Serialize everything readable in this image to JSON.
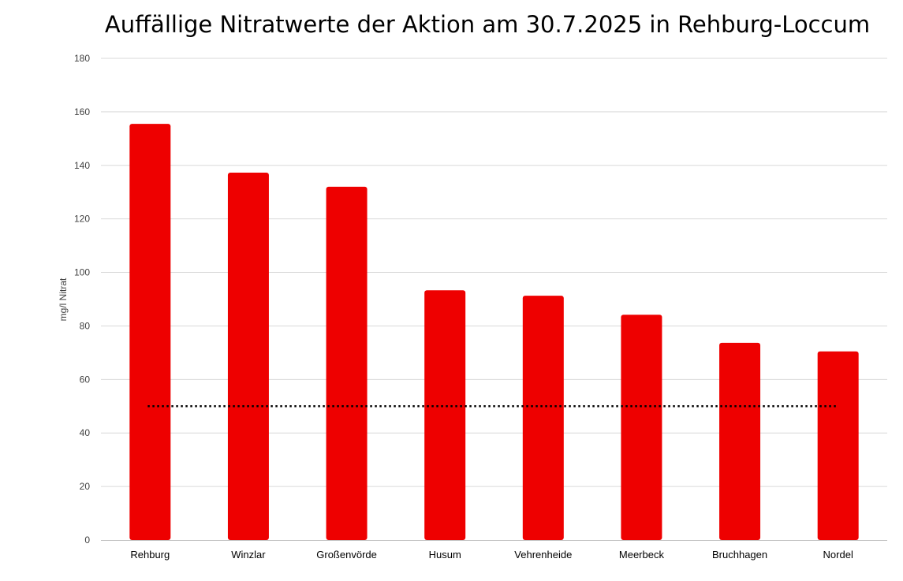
{
  "chart_data": {
    "type": "bar",
    "title": "Auffällige Nitratwerte der Aktion am 30.7.2025 in Rehburg-Loccum",
    "ylabel": "mg/l Nitrat",
    "xlabel": "",
    "categories": [
      "Rehburg",
      "Winzlar",
      "Großenvörde",
      "Husum",
      "Vehrenheide",
      "Meerbeck",
      "Bruchhagen",
      "Nordel"
    ],
    "values": [
      155.5,
      137.3,
      132,
      93.3,
      91.3,
      84.2,
      73.7,
      70.5
    ],
    "ylim": [
      0,
      180
    ],
    "yticks": [
      0,
      20,
      40,
      60,
      80,
      100,
      120,
      140,
      160,
      180
    ],
    "reference_line": 50,
    "grid": true,
    "legend": "none",
    "bar_color": "#ee0000",
    "reference_line_color": "#000000"
  }
}
